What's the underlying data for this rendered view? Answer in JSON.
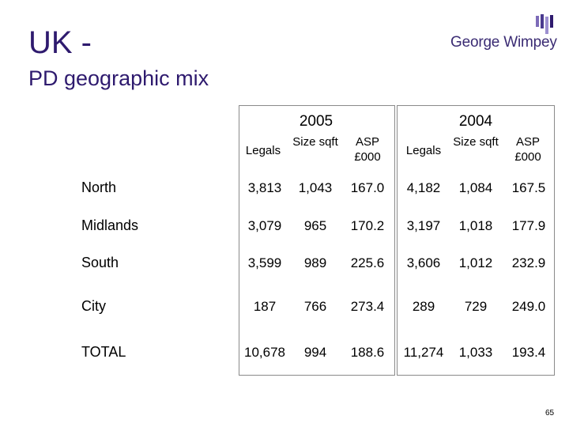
{
  "title": "UK -",
  "subtitle": "PD geographic mix",
  "logo": {
    "text": "George Wimpey",
    "colors": [
      "#7d6bb8",
      "#4a3a8f",
      "#9c8fd0",
      "#2e1a6e"
    ]
  },
  "years": [
    "2005",
    "2004"
  ],
  "column_headers": {
    "y2005": [
      "Legals",
      "Size sqft",
      "ASP £000"
    ],
    "y2004": [
      "Legals",
      "Size sqft",
      "ASP £000"
    ]
  },
  "rows": [
    {
      "label": "North",
      "v2005": [
        "3,813",
        "1,043",
        "167.0"
      ],
      "v2004": [
        "4,182",
        "1,084",
        "167.5"
      ]
    },
    {
      "label": "Midlands",
      "v2005": [
        "3,079",
        "965",
        "170.2"
      ],
      "v2004": [
        "3,197",
        "1,018",
        "177.9"
      ]
    },
    {
      "label": "South",
      "v2005": [
        "3,599",
        "989",
        "225.6"
      ],
      "v2004": [
        "3,606",
        "1,012",
        "232.9"
      ]
    },
    {
      "label": "City",
      "v2005": [
        "187",
        "766",
        "273.4"
      ],
      "v2004": [
        "289",
        "729",
        "249.0"
      ]
    },
    {
      "label": "TOTAL",
      "v2005": [
        "10,678",
        "994",
        "188.6"
      ],
      "v2004": [
        "11,274",
        "1,033",
        "193.4"
      ]
    }
  ],
  "page_number": "65"
}
